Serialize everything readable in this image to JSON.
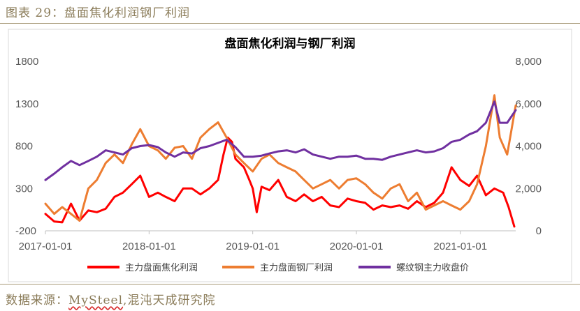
{
  "figure": {
    "caption": "图表 29：盘面焦化利润钢厂利润"
  },
  "source": {
    "prefix": "数据来源：",
    "brand": "MySteel",
    "suffix": ",混沌天成研究院"
  },
  "colors": {
    "coke_profit": "#ff0000",
    "steel_profit": "#ed7d31",
    "rebar_price": "#7030a0",
    "caption_text": "#8a7b58"
  },
  "chart_data": {
    "type": "line",
    "title": "盘面焦化利润与钢厂利润",
    "y_left": {
      "min": -200,
      "max": 1800,
      "ticks": [
        1800,
        1300,
        800,
        300,
        -200
      ]
    },
    "y_right": {
      "min": 0,
      "max": 8000,
      "ticks": [
        "8,000",
        "6,000",
        "4,000",
        "2,000",
        "0"
      ]
    },
    "x_ticks": [
      "2017-01-01",
      "2018-01-01",
      "2019-01-01",
      "2020-01-01",
      "2021-01-01"
    ],
    "x_range": [
      "2017-01-01",
      "2021-07-15"
    ],
    "grid": false,
    "legend_position": "bottom",
    "series": [
      {
        "name": "主力盘面焦化利润",
        "axis": "left",
        "points": [
          [
            "2017-01-01",
            0
          ],
          [
            "2017-02-01",
            -90
          ],
          [
            "2017-03-01",
            -100
          ],
          [
            "2017-04-01",
            120
          ],
          [
            "2017-05-01",
            -80
          ],
          [
            "2017-06-01",
            40
          ],
          [
            "2017-07-01",
            20
          ],
          [
            "2017-08-01",
            60
          ],
          [
            "2017-09-01",
            200
          ],
          [
            "2017-10-01",
            250
          ],
          [
            "2017-11-01",
            350
          ],
          [
            "2017-12-01",
            450
          ],
          [
            "2018-01-01",
            200
          ],
          [
            "2018-02-01",
            250
          ],
          [
            "2018-03-01",
            200
          ],
          [
            "2018-04-01",
            150
          ],
          [
            "2018-05-01",
            300
          ],
          [
            "2018-06-01",
            300
          ],
          [
            "2018-07-01",
            230
          ],
          [
            "2018-08-01",
            300
          ],
          [
            "2018-09-01",
            400
          ],
          [
            "2018-09-20",
            700
          ],
          [
            "2018-10-05",
            900
          ],
          [
            "2018-10-20",
            850
          ],
          [
            "2018-11-01",
            650
          ],
          [
            "2018-12-01",
            550
          ],
          [
            "2018-12-20",
            400
          ],
          [
            "2019-01-01",
            300
          ],
          [
            "2019-01-15",
            20
          ],
          [
            "2019-02-01",
            320
          ],
          [
            "2019-03-01",
            280
          ],
          [
            "2019-04-01",
            400
          ],
          [
            "2019-05-01",
            200
          ],
          [
            "2019-06-01",
            150
          ],
          [
            "2019-07-01",
            230
          ],
          [
            "2019-08-01",
            150
          ],
          [
            "2019-09-01",
            200
          ],
          [
            "2019-10-01",
            100
          ],
          [
            "2019-11-01",
            80
          ],
          [
            "2019-12-01",
            180
          ],
          [
            "2020-01-01",
            150
          ],
          [
            "2020-02-01",
            130
          ],
          [
            "2020-03-01",
            50
          ],
          [
            "2020-04-01",
            100
          ],
          [
            "2020-05-01",
            80
          ],
          [
            "2020-06-01",
            100
          ],
          [
            "2020-07-01",
            60
          ],
          [
            "2020-08-01",
            150
          ],
          [
            "2020-09-01",
            80
          ],
          [
            "2020-10-01",
            130
          ],
          [
            "2020-11-01",
            250
          ],
          [
            "2020-12-01",
            550
          ],
          [
            "2021-01-01",
            400
          ],
          [
            "2021-02-01",
            330
          ],
          [
            "2021-03-01",
            450
          ],
          [
            "2021-04-01",
            220
          ],
          [
            "2021-05-01",
            300
          ],
          [
            "2021-06-01",
            250
          ],
          [
            "2021-06-20",
            80
          ],
          [
            "2021-07-10",
            -150
          ]
        ]
      },
      {
        "name": "主力盘面钢厂利润",
        "axis": "left",
        "points": [
          [
            "2017-01-01",
            120
          ],
          [
            "2017-02-01",
            0
          ],
          [
            "2017-03-01",
            80
          ],
          [
            "2017-04-01",
            0
          ],
          [
            "2017-05-01",
            -80
          ],
          [
            "2017-06-01",
            300
          ],
          [
            "2017-07-01",
            400
          ],
          [
            "2017-08-01",
            600
          ],
          [
            "2017-09-01",
            700
          ],
          [
            "2017-10-01",
            600
          ],
          [
            "2017-11-01",
            820
          ],
          [
            "2017-12-01",
            1000
          ],
          [
            "2018-01-01",
            800
          ],
          [
            "2018-02-01",
            750
          ],
          [
            "2018-03-01",
            650
          ],
          [
            "2018-04-01",
            780
          ],
          [
            "2018-05-01",
            800
          ],
          [
            "2018-06-01",
            650
          ],
          [
            "2018-07-01",
            900
          ],
          [
            "2018-08-01",
            1000
          ],
          [
            "2018-09-01",
            1080
          ],
          [
            "2018-10-01",
            900
          ],
          [
            "2018-11-01",
            700
          ],
          [
            "2018-12-01",
            600
          ],
          [
            "2019-01-01",
            500
          ],
          [
            "2019-02-01",
            650
          ],
          [
            "2019-03-01",
            700
          ],
          [
            "2019-04-01",
            600
          ],
          [
            "2019-05-01",
            550
          ],
          [
            "2019-06-01",
            500
          ],
          [
            "2019-07-01",
            400
          ],
          [
            "2019-08-01",
            300
          ],
          [
            "2019-09-01",
            350
          ],
          [
            "2019-10-01",
            400
          ],
          [
            "2019-11-01",
            300
          ],
          [
            "2019-12-01",
            400
          ],
          [
            "2020-01-01",
            420
          ],
          [
            "2020-02-01",
            350
          ],
          [
            "2020-03-01",
            250
          ],
          [
            "2020-04-01",
            180
          ],
          [
            "2020-05-01",
            300
          ],
          [
            "2020-06-01",
            350
          ],
          [
            "2020-07-01",
            150
          ],
          [
            "2020-08-01",
            250
          ],
          [
            "2020-09-01",
            50
          ],
          [
            "2020-10-01",
            100
          ],
          [
            "2020-11-01",
            150
          ],
          [
            "2020-12-01",
            100
          ],
          [
            "2021-01-01",
            50
          ],
          [
            "2021-02-01",
            150
          ],
          [
            "2021-03-01",
            350
          ],
          [
            "2021-04-01",
            800
          ],
          [
            "2021-05-01",
            1400
          ],
          [
            "2021-05-20",
            900
          ],
          [
            "2021-06-15",
            700
          ],
          [
            "2021-07-15",
            1280
          ]
        ]
      },
      {
        "name": "螺纹钢主力收盘价",
        "axis": "right",
        "points": [
          [
            "2017-01-01",
            2400
          ],
          [
            "2017-02-01",
            2700
          ],
          [
            "2017-03-01",
            3000
          ],
          [
            "2017-04-01",
            3300
          ],
          [
            "2017-05-01",
            3100
          ],
          [
            "2017-06-01",
            3300
          ],
          [
            "2017-07-01",
            3500
          ],
          [
            "2017-08-01",
            3800
          ],
          [
            "2017-09-01",
            3700
          ],
          [
            "2017-10-01",
            3600
          ],
          [
            "2017-11-01",
            3900
          ],
          [
            "2017-12-01",
            4000
          ],
          [
            "2018-01-01",
            4050
          ],
          [
            "2018-02-01",
            3950
          ],
          [
            "2018-03-01",
            3700
          ],
          [
            "2018-04-01",
            3500
          ],
          [
            "2018-05-01",
            3700
          ],
          [
            "2018-06-01",
            3650
          ],
          [
            "2018-07-01",
            3900
          ],
          [
            "2018-08-01",
            4000
          ],
          [
            "2018-09-01",
            4150
          ],
          [
            "2018-10-01",
            4300
          ],
          [
            "2018-11-01",
            3950
          ],
          [
            "2018-12-01",
            3500
          ],
          [
            "2019-01-01",
            3500
          ],
          [
            "2019-02-01",
            3550
          ],
          [
            "2019-03-01",
            3650
          ],
          [
            "2019-04-01",
            3750
          ],
          [
            "2019-05-01",
            3800
          ],
          [
            "2019-06-01",
            3700
          ],
          [
            "2019-07-01",
            3850
          ],
          [
            "2019-08-01",
            3600
          ],
          [
            "2019-09-01",
            3500
          ],
          [
            "2019-10-01",
            3400
          ],
          [
            "2019-11-01",
            3500
          ],
          [
            "2019-12-01",
            3500
          ],
          [
            "2020-01-01",
            3550
          ],
          [
            "2020-02-01",
            3400
          ],
          [
            "2020-03-01",
            3400
          ],
          [
            "2020-04-01",
            3350
          ],
          [
            "2020-05-01",
            3500
          ],
          [
            "2020-06-01",
            3600
          ],
          [
            "2020-07-01",
            3700
          ],
          [
            "2020-08-01",
            3800
          ],
          [
            "2020-09-01",
            3700
          ],
          [
            "2020-10-01",
            3750
          ],
          [
            "2020-11-01",
            3900
          ],
          [
            "2020-12-01",
            4200
          ],
          [
            "2021-01-01",
            4300
          ],
          [
            "2021-02-01",
            4550
          ],
          [
            "2021-03-01",
            4700
          ],
          [
            "2021-04-01",
            5100
          ],
          [
            "2021-05-01",
            6100
          ],
          [
            "2021-05-20",
            5100
          ],
          [
            "2021-06-15",
            5100
          ],
          [
            "2021-07-15",
            5700
          ]
        ]
      }
    ]
  }
}
